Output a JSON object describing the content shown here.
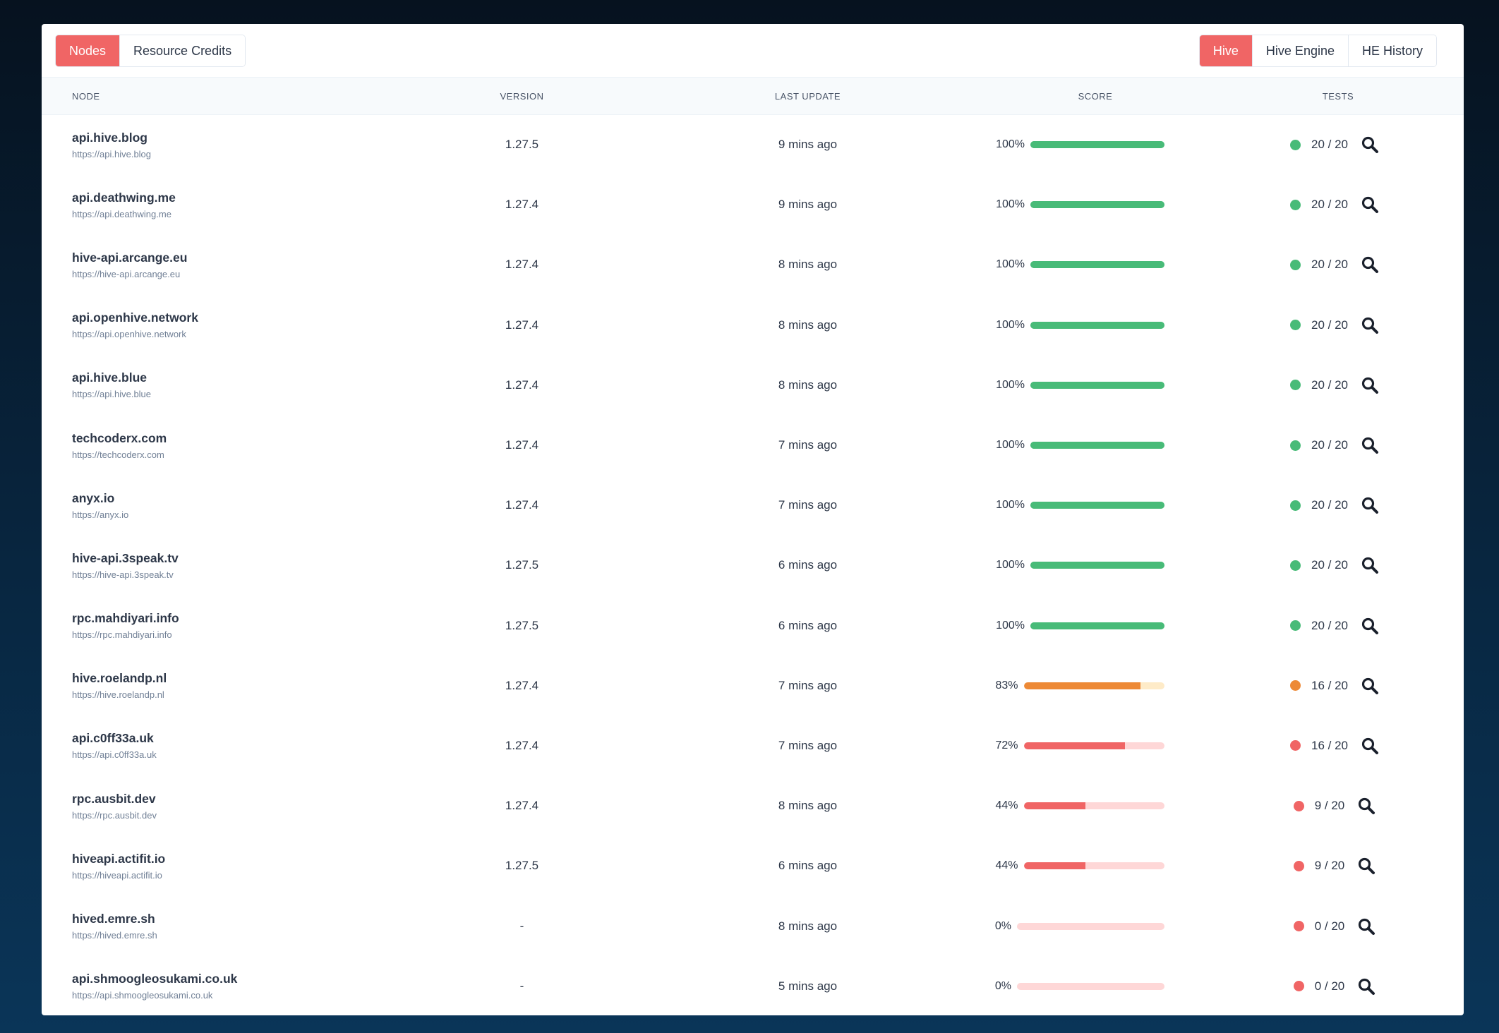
{
  "tabs_left": [
    {
      "label": "Nodes",
      "active": true
    },
    {
      "label": "Resource Credits",
      "active": false
    }
  ],
  "tabs_right": [
    {
      "label": "Hive",
      "active": true
    },
    {
      "label": "Hive Engine",
      "active": false
    },
    {
      "label": "HE History",
      "active": false
    }
  ],
  "columns": {
    "node": "Node",
    "version": "Version",
    "last_update": "Last update",
    "score": "Score",
    "tests": "Tests"
  },
  "colors": {
    "accent": "#f06565",
    "good": "#48bb78",
    "good_track": "#48bb78",
    "warn": "#ed8936",
    "warn_track": "#feebc8",
    "bad": "#f06565",
    "bad_track": "#fed7d7"
  },
  "icons": {
    "action": "search-icon"
  },
  "rows": [
    {
      "name": "api.hive.blog",
      "url": "https://api.hive.blog",
      "version": "1.27.5",
      "last_update": "9 mins ago",
      "score": "100%",
      "score_value": 100,
      "tests": "20 / 20",
      "status": "good"
    },
    {
      "name": "api.deathwing.me",
      "url": "https://api.deathwing.me",
      "version": "1.27.4",
      "last_update": "9 mins ago",
      "score": "100%",
      "score_value": 100,
      "tests": "20 / 20",
      "status": "good"
    },
    {
      "name": "hive-api.arcange.eu",
      "url": "https://hive-api.arcange.eu",
      "version": "1.27.4",
      "last_update": "8 mins ago",
      "score": "100%",
      "score_value": 100,
      "tests": "20 / 20",
      "status": "good"
    },
    {
      "name": "api.openhive.network",
      "url": "https://api.openhive.network",
      "version": "1.27.4",
      "last_update": "8 mins ago",
      "score": "100%",
      "score_value": 100,
      "tests": "20 / 20",
      "status": "good"
    },
    {
      "name": "api.hive.blue",
      "url": "https://api.hive.blue",
      "version": "1.27.4",
      "last_update": "8 mins ago",
      "score": "100%",
      "score_value": 100,
      "tests": "20 / 20",
      "status": "good"
    },
    {
      "name": "techcoderx.com",
      "url": "https://techcoderx.com",
      "version": "1.27.4",
      "last_update": "7 mins ago",
      "score": "100%",
      "score_value": 100,
      "tests": "20 / 20",
      "status": "good"
    },
    {
      "name": "anyx.io",
      "url": "https://anyx.io",
      "version": "1.27.4",
      "last_update": "7 mins ago",
      "score": "100%",
      "score_value": 100,
      "tests": "20 / 20",
      "status": "good"
    },
    {
      "name": "hive-api.3speak.tv",
      "url": "https://hive-api.3speak.tv",
      "version": "1.27.5",
      "last_update": "6 mins ago",
      "score": "100%",
      "score_value": 100,
      "tests": "20 / 20",
      "status": "good"
    },
    {
      "name": "rpc.mahdiyari.info",
      "url": "https://rpc.mahdiyari.info",
      "version": "1.27.5",
      "last_update": "6 mins ago",
      "score": "100%",
      "score_value": 100,
      "tests": "20 / 20",
      "status": "good"
    },
    {
      "name": "hive.roelandp.nl",
      "url": "https://hive.roelandp.nl",
      "version": "1.27.4",
      "last_update": "7 mins ago",
      "score": "83%",
      "score_value": 83,
      "tests": "16 / 20",
      "status": "warn"
    },
    {
      "name": "api.c0ff33a.uk",
      "url": "https://api.c0ff33a.uk",
      "version": "1.27.4",
      "last_update": "7 mins ago",
      "score": "72%",
      "score_value": 72,
      "tests": "16 / 20",
      "status": "bad"
    },
    {
      "name": "rpc.ausbit.dev",
      "url": "https://rpc.ausbit.dev",
      "version": "1.27.4",
      "last_update": "8 mins ago",
      "score": "44%",
      "score_value": 44,
      "tests": "9 / 20",
      "status": "bad"
    },
    {
      "name": "hiveapi.actifit.io",
      "url": "https://hiveapi.actifit.io",
      "version": "1.27.5",
      "last_update": "6 mins ago",
      "score": "44%",
      "score_value": 44,
      "tests": "9 / 20",
      "status": "bad"
    },
    {
      "name": "hived.emre.sh",
      "url": "https://hived.emre.sh",
      "version": "-",
      "last_update": "8 mins ago",
      "score": "0%",
      "score_value": 0,
      "tests": "0 / 20",
      "status": "bad"
    },
    {
      "name": "api.shmoogleosukami.co.uk",
      "url": "https://api.shmoogleosukami.co.uk",
      "version": "-",
      "last_update": "5 mins ago",
      "score": "0%",
      "score_value": 0,
      "tests": "0 / 20",
      "status": "bad"
    }
  ]
}
